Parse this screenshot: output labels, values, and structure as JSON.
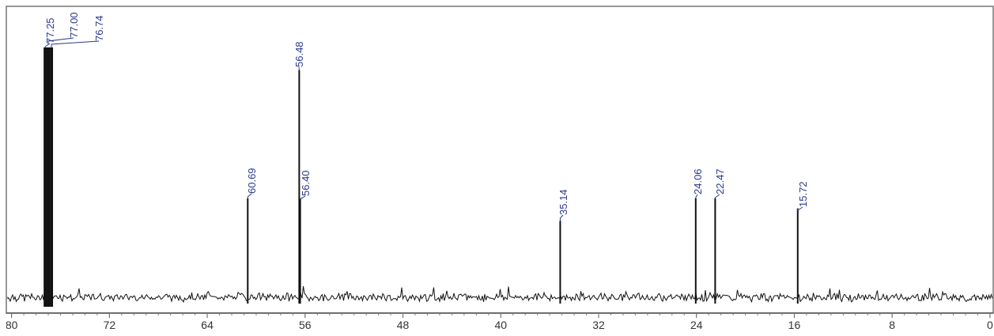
{
  "chart_data": {
    "type": "spectrum",
    "x": [
      77.25,
      77.0,
      76.74,
      60.69,
      56.48,
      56.4,
      35.14,
      24.06,
      22.47,
      15.72
    ],
    "values": [
      100,
      100,
      100,
      40,
      91,
      40,
      31,
      40,
      40,
      36
    ],
    "value_labels": [
      "77.25",
      "77.00",
      "76.74",
      "60.69",
      "56.48",
      "56.40",
      "35.14",
      "24.06",
      "22.47",
      "15.72"
    ],
    "color": "#111111",
    "label_color": "#2a3a8f",
    "xlim": [
      80.3,
      -0.2
    ],
    "xticks": [
      80,
      72,
      64,
      56,
      48,
      40,
      32,
      24,
      16,
      8,
      0
    ]
  }
}
